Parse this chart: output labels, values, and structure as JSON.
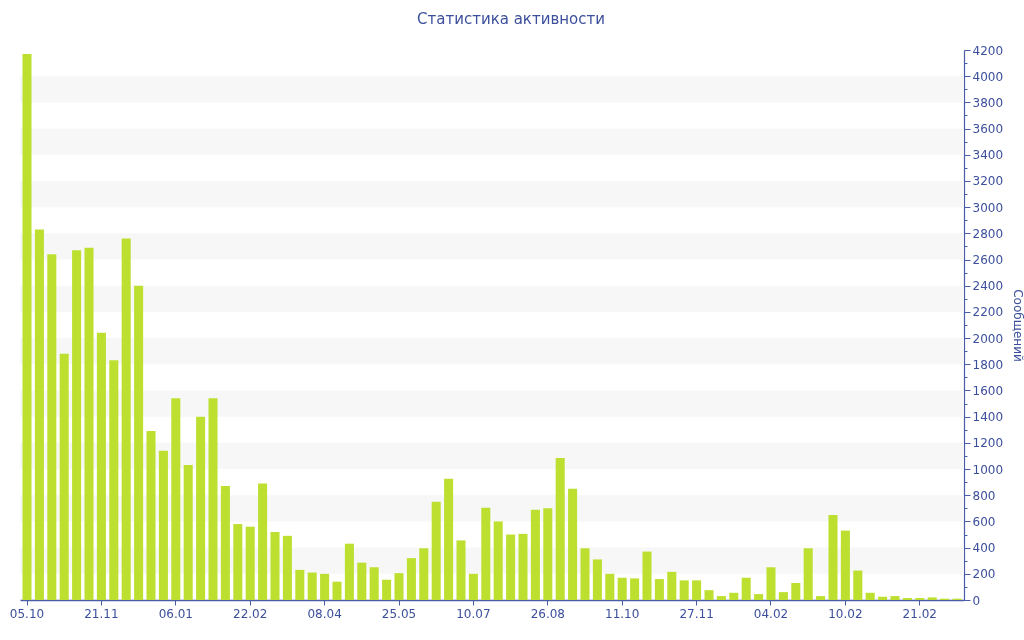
{
  "chart_data": {
    "type": "bar",
    "title": "Статистика активности",
    "ylabel": "Сообщений",
    "categories": [
      "05.10",
      null,
      null,
      null,
      null,
      null,
      "21.11",
      null,
      null,
      null,
      null,
      null,
      "06.01",
      null,
      null,
      null,
      null,
      null,
      "22.02",
      null,
      null,
      null,
      null,
      null,
      "08.04",
      null,
      null,
      null,
      null,
      null,
      "25.05",
      null,
      null,
      null,
      null,
      null,
      "10.07",
      null,
      null,
      null,
      null,
      null,
      "26.08",
      null,
      null,
      null,
      null,
      null,
      "11.10",
      null,
      null,
      null,
      null,
      null,
      "27.11",
      null,
      null,
      null,
      null,
      null,
      "04.02",
      null,
      null,
      null,
      null,
      null,
      "10.02",
      null,
      null,
      null,
      null,
      null,
      "21.02",
      null,
      null,
      null
    ],
    "values": [
      4170,
      2830,
      2640,
      1880,
      2670,
      2690,
      2040,
      1830,
      2760,
      2400,
      1290,
      1140,
      1540,
      1030,
      1400,
      1540,
      870,
      580,
      560,
      890,
      520,
      490,
      230,
      210,
      200,
      140,
      430,
      285,
      250,
      155,
      205,
      320,
      395,
      750,
      925,
      455,
      200,
      705,
      600,
      500,
      505,
      690,
      700,
      1085,
      850,
      395,
      310,
      200,
      170,
      165,
      370,
      160,
      215,
      150,
      150,
      75,
      30,
      55,
      170,
      45,
      250,
      60,
      130,
      395,
      30,
      650,
      530,
      225,
      55,
      25,
      30,
      15,
      15,
      20,
      10,
      10
    ],
    "color": "#bde030",
    "ylim": [
      0,
      4200
    ],
    "yticks": [
      0,
      {
        "value": 100,
        "label": null
      },
      200,
      {
        "value": 300,
        "label": null
      },
      400,
      {
        "value": 500,
        "label": null
      },
      600,
      {
        "value": 700,
        "label": null
      },
      800,
      {
        "value": 900,
        "label": null
      },
      1000,
      {
        "value": 1100,
        "label": null
      },
      1200,
      {
        "value": 1300,
        "label": null
      },
      1400,
      {
        "value": 1500,
        "label": null
      },
      1600,
      {
        "value": 1700,
        "label": null
      },
      1800,
      {
        "value": 1900,
        "label": null
      },
      2000,
      {
        "value": 2100,
        "label": null
      },
      2200,
      {
        "value": 2300,
        "label": null
      },
      2400,
      {
        "value": 2500,
        "label": null
      },
      2600,
      {
        "value": 2700,
        "label": null
      },
      2800,
      {
        "value": 2900,
        "label": null
      },
      3000,
      {
        "value": 3100,
        "label": null
      },
      3200,
      {
        "value": 3300,
        "label": null
      },
      3400,
      {
        "value": 3500,
        "label": null
      },
      3600,
      {
        "value": 3700,
        "label": null
      },
      3800,
      {
        "value": 3900,
        "label": null
      },
      4000,
      {
        "value": 4100,
        "label": null
      },
      4200
    ],
    "bands": [
      {
        "axis": "y",
        "from": 200,
        "to": 400,
        "color": "#f7f7f7"
      },
      {
        "axis": "y",
        "from": 600,
        "to": 800,
        "color": "#f7f7f7"
      },
      {
        "axis": "y",
        "from": 1000,
        "to": 1200,
        "color": "#f7f7f7"
      },
      {
        "axis": "y",
        "from": 1400,
        "to": 1600,
        "color": "#f7f7f7"
      },
      {
        "axis": "y",
        "from": 1800,
        "to": 2000,
        "color": "#f7f7f7"
      },
      {
        "axis": "y",
        "from": 2200,
        "to": 2400,
        "color": "#f7f7f7"
      },
      {
        "axis": "y",
        "from": 2600,
        "to": 2800,
        "color": "#f7f7f7"
      },
      {
        "axis": "y",
        "from": 3000,
        "to": 3200,
        "color": "#f7f7f7"
      },
      {
        "axis": "y",
        "from": 3400,
        "to": 3600,
        "color": "#f7f7f7"
      },
      {
        "axis": "y",
        "from": 3800,
        "to": 4000,
        "color": "#f7f7f7"
      }
    ]
  }
}
